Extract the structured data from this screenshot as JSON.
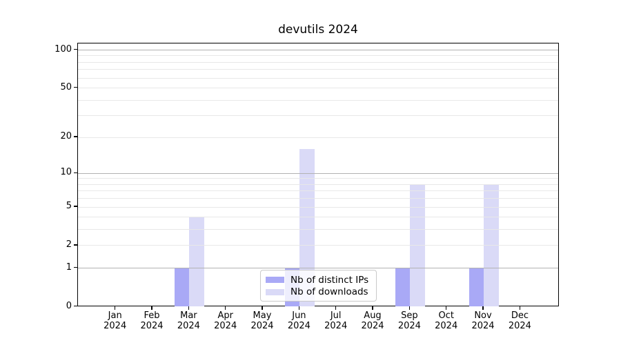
{
  "chart_data": {
    "type": "bar",
    "title": "devutils 2024",
    "categories": [
      "Jan",
      "Feb",
      "Mar",
      "Apr",
      "May",
      "Jun",
      "Jul",
      "Aug",
      "Sep",
      "Oct",
      "Nov",
      "Dec"
    ],
    "category_year": "2024",
    "series": [
      {
        "name": "Nb of distinct IPs",
        "color": "#a9a9f6",
        "values": [
          0,
          0,
          1,
          0,
          0,
          1,
          0,
          0,
          1,
          0,
          1,
          0
        ]
      },
      {
        "name": "Nb of downloads",
        "color": "#dadaf7",
        "values": [
          0,
          0,
          4,
          0,
          0,
          16,
          0,
          0,
          8,
          0,
          8,
          0
        ]
      }
    ],
    "xlabel": "",
    "ylabel": "",
    "yscale": "log10(1+v)",
    "ylim": [
      0,
      113
    ],
    "yticks": [
      0,
      1,
      2,
      5,
      10,
      20,
      50,
      100
    ],
    "grid": {
      "major_values": [
        1,
        10,
        100
      ],
      "minor_values": [
        2,
        3,
        4,
        5,
        6,
        7,
        8,
        9,
        20,
        30,
        40,
        50,
        60,
        70,
        80,
        90
      ],
      "major_color": "#b2b2b2",
      "minor_color": "#e8e8e8"
    },
    "legend": {
      "position": "lower-center",
      "items": [
        "Nb of distinct IPs",
        "Nb of downloads"
      ]
    },
    "axis_color": "#000000",
    "text_color": "#000000",
    "background_color": "#ffffff"
  }
}
